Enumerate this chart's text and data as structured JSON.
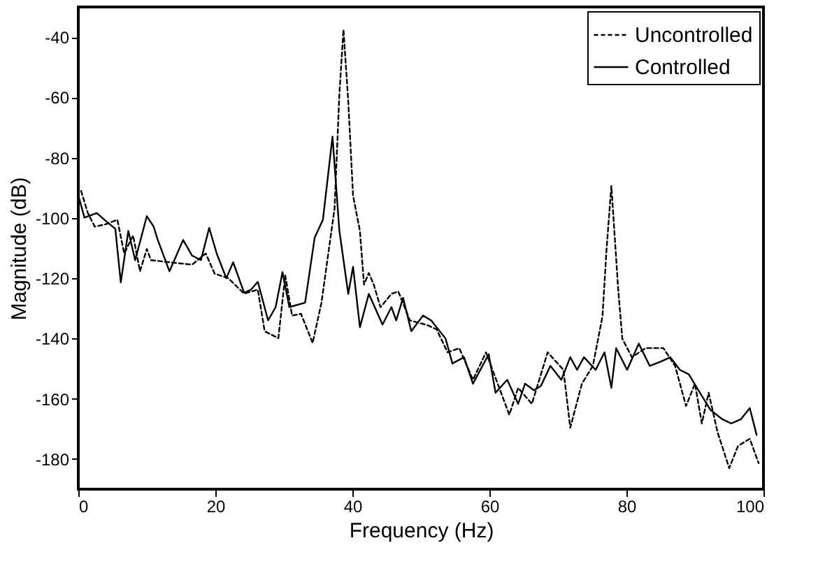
{
  "chart_data": {
    "type": "line",
    "xlabel": "Frequency (Hz)",
    "ylabel": "Magnitude (dB)",
    "xlim": [
      0,
      100
    ],
    "ylim": [
      -190,
      -30
    ],
    "xticks": [
      0,
      20,
      40,
      60,
      80,
      100
    ],
    "yticks": [
      -40,
      -60,
      -80,
      -100,
      -120,
      -140,
      -160,
      -180
    ],
    "grid": false,
    "legend": "top right",
    "series": [
      {
        "name": "Uncontrolled",
        "color": "#000000",
        "line_style": "dashed",
        "x": [
          0.4,
          1.4,
          2.4,
          4,
          5.7,
          6.7,
          8,
          9,
          10,
          10.6,
          13.3,
          16.6,
          18.6,
          19.9,
          21.9,
          24.2,
          26.2,
          27.2,
          29.2,
          30.2,
          31.2,
          32.5,
          34.2,
          35.5,
          36.4,
          37.4,
          38.1,
          38.7,
          39.4,
          40.1,
          41.1,
          41.7,
          42.4,
          43.1,
          44.1,
          45.7,
          46.7,
          48.4,
          51,
          52.3,
          53.9,
          55.6,
          57.6,
          59.5,
          62.9,
          64.2,
          66.2,
          68.5,
          70.8,
          71.8,
          73.5,
          75.1,
          76.5,
          77.1,
          77.8,
          78.8,
          79.4,
          80.8,
          82.8,
          85.4,
          87.1,
          88.7,
          90,
          91,
          92,
          93.3,
          95,
          96.3,
          98,
          99.3
        ],
        "values": [
          -91,
          -98.4,
          -102.9,
          -102.1,
          -100.6,
          -111.8,
          -105.8,
          -117.7,
          -110.3,
          -114,
          -114.7,
          -115.5,
          -111.8,
          -118.5,
          -120,
          -125.1,
          -123.8,
          -137.6,
          -139.9,
          -119.1,
          -132.4,
          -131.8,
          -141.5,
          -128,
          -113.2,
          -96.9,
          -59,
          -37.5,
          -61.3,
          -92.6,
          -104.3,
          -122.1,
          -118.3,
          -122,
          -129.6,
          -125.2,
          -124.4,
          -134,
          -135.6,
          -137,
          -144.6,
          -143.2,
          -153.7,
          -144.6,
          -165.3,
          -156.4,
          -161.7,
          -144.6,
          -150.4,
          -169.6,
          -155,
          -149.1,
          -132.7,
          -110.3,
          -89.4,
          -123.7,
          -140.1,
          -146.2,
          -143.2,
          -143.2,
          -149.1,
          -162.4,
          -155,
          -168.2,
          -158,
          -171.1,
          -183,
          -175.6,
          -173.3,
          -181.4
        ]
      },
      {
        "name": "Controlled",
        "color": "#000000",
        "line_style": "solid",
        "x": [
          0,
          0.9,
          2.7,
          4,
          5.4,
          6.2,
          7.3,
          8.3,
          10,
          11,
          11.6,
          13.3,
          15.3,
          16.6,
          17.9,
          19.1,
          20.2,
          21.6,
          22.6,
          24.2,
          25.2,
          26.2,
          27.7,
          28.8,
          29.8,
          30.8,
          33.1,
          34.5,
          35.7,
          37.1,
          38.1,
          39.4,
          40.1,
          41.1,
          42.4,
          44.4,
          45.7,
          46.4,
          47.4,
          48.6,
          50.3,
          51.5,
          53.6,
          54.6,
          56.3,
          57.6,
          59.9,
          60.9,
          62.6,
          64.2,
          65.2,
          66.5,
          67.5,
          68.9,
          70.5,
          71.8,
          72.8,
          73.8,
          75.5,
          76.8,
          77.8,
          78.5,
          80.1,
          81.8,
          83.4,
          85.1,
          86.4,
          87.8,
          89.1,
          90.7,
          92.3,
          94,
          95.3,
          96.7,
          98,
          99
        ],
        "values": [
          -92.5,
          -99.9,
          -98.4,
          -101,
          -103.6,
          -121.4,
          -104.3,
          -114,
          -99.4,
          -102.9,
          -107.3,
          -117.7,
          -107.3,
          -112.5,
          -114,
          -103.3,
          -111.8,
          -120,
          -114.7,
          -124.8,
          -123.8,
          -121.2,
          -134,
          -129.6,
          -118,
          -129.6,
          -128.1,
          -106.5,
          -100.6,
          -73,
          -104.2,
          -125.2,
          -116.2,
          -136.3,
          -125.2,
          -135.4,
          -129.6,
          -134,
          -126.5,
          -137.6,
          -132.4,
          -134,
          -140,
          -148.3,
          -146.2,
          -155,
          -145.2,
          -158,
          -153.7,
          -161.7,
          -155,
          -157.2,
          -155.8,
          -149.1,
          -153.7,
          -146.2,
          -150.4,
          -146.2,
          -150.4,
          -144.6,
          -156.4,
          -143.2,
          -150.4,
          -141.7,
          -149.1,
          -147.6,
          -146.2,
          -150.4,
          -151.9,
          -157.9,
          -163.8,
          -166.8,
          -168.2,
          -166.8,
          -163.1,
          -172
        ]
      }
    ]
  }
}
